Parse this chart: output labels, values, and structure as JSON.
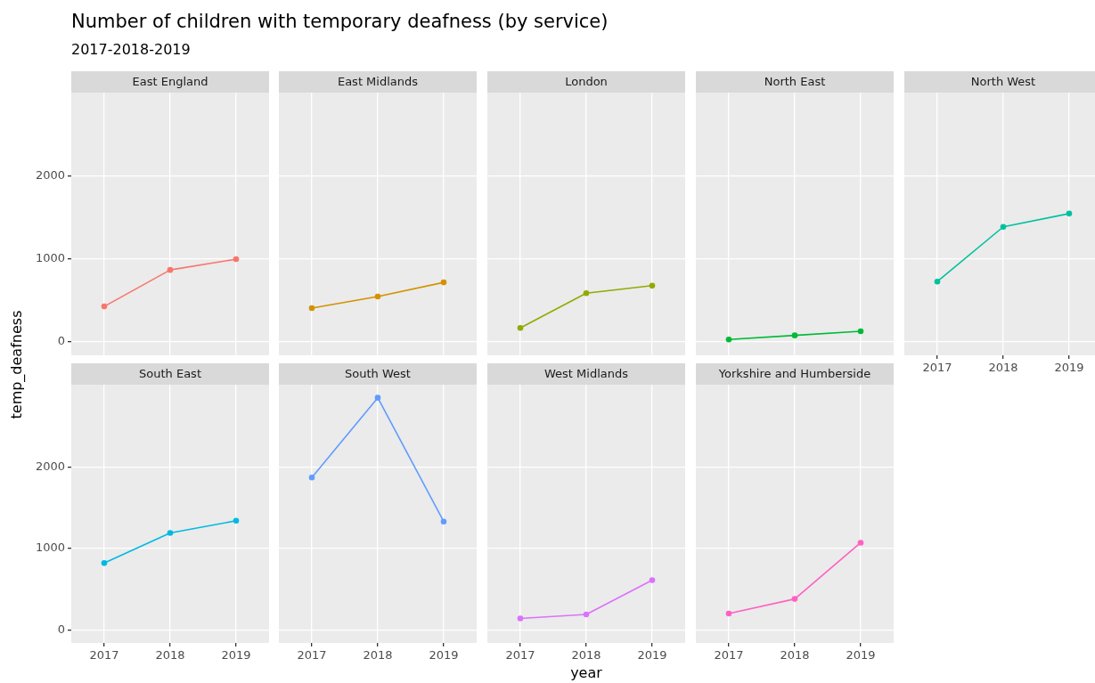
{
  "chart_data": [
    {
      "type": "line",
      "title": "Number of children with temporary deafness (by service)",
      "subtitle": "2017-2018-2019",
      "categories": [
        "2017",
        "2018",
        "2019"
      ],
      "series": [
        {
          "name": "East England",
          "color": "#f8766d",
          "values": [
            430,
            870,
            1000
          ]
        }
      ],
      "ylim": [
        -160,
        3010
      ],
      "yticks": [
        0,
        1000,
        2000
      ],
      "grid": true,
      "marker": "circle",
      "tick_labels": "y"
    },
    {
      "type": "line",
      "categories": [
        "2017",
        "2018",
        "2019"
      ],
      "series": [
        {
          "name": "East Midlands",
          "color": "#d39200",
          "values": [
            410,
            550,
            720
          ]
        }
      ],
      "ylim": [
        -160,
        3010
      ],
      "yticks": [
        0,
        1000,
        2000
      ],
      "grid": true,
      "marker": "circle",
      "tick_labels": false
    },
    {
      "type": "line",
      "categories": [
        "2017",
        "2018",
        "2019"
      ],
      "series": [
        {
          "name": "London",
          "color": "#93aa00",
          "values": [
            170,
            590,
            680
          ]
        }
      ],
      "ylim": [
        -160,
        3010
      ],
      "yticks": [
        0,
        1000,
        2000
      ],
      "grid": true,
      "marker": "circle",
      "tick_labels": false
    },
    {
      "type": "line",
      "categories": [
        "2017",
        "2018",
        "2019"
      ],
      "series": [
        {
          "name": "North East",
          "color": "#00ba38",
          "values": [
            30,
            80,
            130
          ]
        }
      ],
      "ylim": [
        -160,
        3010
      ],
      "yticks": [
        0,
        1000,
        2000
      ],
      "grid": true,
      "marker": "circle",
      "tick_labels": false
    },
    {
      "type": "line",
      "categories": [
        "2017",
        "2018",
        "2019"
      ],
      "series": [
        {
          "name": "North West",
          "color": "#00c19f",
          "values": [
            730,
            1390,
            1550
          ]
        }
      ],
      "ylim": [
        -160,
        3010
      ],
      "yticks": [
        0,
        1000,
        2000
      ],
      "grid": true,
      "marker": "circle",
      "tick_labels": "x"
    },
    {
      "type": "line",
      "ylabel": "temp_deafness",
      "categories": [
        "2017",
        "2018",
        "2019"
      ],
      "series": [
        {
          "name": "South East",
          "color": "#00b9e3",
          "values": [
            820,
            1190,
            1340
          ]
        }
      ],
      "ylim": [
        -160,
        3010
      ],
      "yticks": [
        0,
        1000,
        2000
      ],
      "grid": true,
      "marker": "circle"
    },
    {
      "type": "line",
      "categories": [
        "2017",
        "2018",
        "2019"
      ],
      "series": [
        {
          "name": "South West",
          "color": "#619cff",
          "values": [
            1870,
            2850,
            1330
          ]
        }
      ],
      "ylim": [
        -160,
        3010
      ],
      "yticks": [
        0,
        1000,
        2000
      ],
      "grid": true,
      "marker": "circle",
      "tick_labels": "x"
    },
    {
      "type": "line",
      "xlabel": "year",
      "categories": [
        "2017",
        "2018",
        "2019"
      ],
      "series": [
        {
          "name": "West Midlands",
          "color": "#db72fb",
          "values": [
            140,
            190,
            610
          ]
        }
      ],
      "ylim": [
        -160,
        3010
      ],
      "yticks": [
        0,
        1000,
        2000
      ],
      "grid": true,
      "marker": "circle",
      "tick_labels": "x"
    },
    {
      "type": "line",
      "categories": [
        "2017",
        "2018",
        "2019"
      ],
      "series": [
        {
          "name": "Yorkshire and Humberside",
          "color": "#ff61c3",
          "values": [
            200,
            380,
            1070
          ]
        }
      ],
      "ylim": [
        -160,
        3010
      ],
      "yticks": [
        0,
        1000,
        2000
      ],
      "grid": true,
      "marker": "circle",
      "tick_labels": "x"
    }
  ]
}
